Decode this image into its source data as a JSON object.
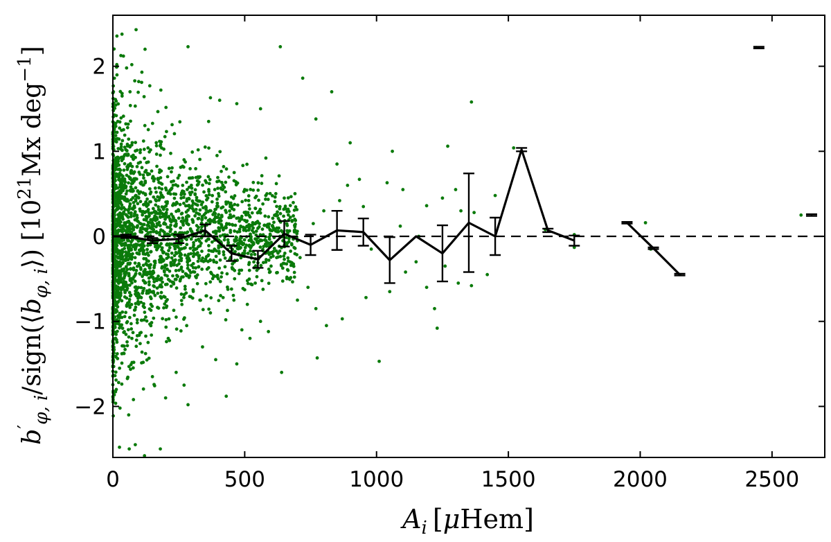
{
  "chart_data": {
    "type": "scatter",
    "xlabel": "A_i [μHem]",
    "ylabel": "b′_φ,i /sign(⟨b_φ,i⟩) [10^21 Mx deg^−1]",
    "xlim": [
      0,
      2700
    ],
    "ylim": [
      -2.6,
      2.6
    ],
    "x_ticks": [
      0,
      500,
      1000,
      1500,
      2000,
      2500
    ],
    "y_ticks": [
      -2,
      -1,
      0,
      1,
      2
    ],
    "x_tick_labels": [
      "0",
      "500",
      "1000",
      "1500",
      "2000",
      "2500"
    ],
    "y_tick_labels": [
      "−2",
      "−1",
      "0",
      "1",
      "2"
    ],
    "grid": false,
    "reference_line": {
      "y": 0,
      "style": "dashed",
      "color": "#000000"
    },
    "scatter": {
      "color": "#0a7a0a",
      "points": [
        [
          15,
          2.02
        ],
        [
          40,
          2.12
        ],
        [
          52,
          1.98
        ],
        [
          88,
          2.43
        ],
        [
          122,
          2.2
        ],
        [
          285,
          2.23
        ],
        [
          110,
          1.93
        ],
        [
          98,
          1.82
        ],
        [
          140,
          1.77
        ],
        [
          182,
          1.72
        ],
        [
          35,
          1.65
        ],
        [
          65,
          1.7
        ],
        [
          370,
          1.63
        ],
        [
          405,
          1.6
        ],
        [
          470,
          1.56
        ],
        [
          560,
          1.5
        ],
        [
          635,
          2.23
        ],
        [
          720,
          1.86
        ],
        [
          770,
          1.38
        ],
        [
          830,
          1.7
        ],
        [
          1360,
          1.58
        ],
        [
          1520,
          1.04
        ],
        [
          900,
          1.1
        ],
        [
          850,
          0.85
        ],
        [
          935,
          0.67
        ],
        [
          890,
          0.6
        ],
        [
          1040,
          0.63
        ],
        [
          1100,
          0.55
        ],
        [
          1060,
          1.0
        ],
        [
          1190,
          0.36
        ],
        [
          1270,
          1.06
        ],
        [
          1250,
          0.45
        ],
        [
          1300,
          0.55
        ],
        [
          1320,
          0.3
        ],
        [
          1370,
          0.28
        ],
        [
          1450,
          0.48
        ],
        [
          1640,
          0.08
        ],
        [
          1750,
          0.02
        ],
        [
          1750,
          -0.13
        ],
        [
          2020,
          0.16
        ],
        [
          2040,
          -0.15
        ],
        [
          2150,
          -0.45
        ],
        [
          2440,
          2.22
        ],
        [
          2610,
          0.25
        ],
        [
          1230,
          -1.08
        ],
        [
          1010,
          -1.47
        ],
        [
          960,
          -0.72
        ],
        [
          870,
          -0.97
        ],
        [
          810,
          -1.05
        ],
        [
          775,
          -1.43
        ],
        [
          770,
          -0.85
        ],
        [
          700,
          -0.75
        ],
        [
          640,
          -1.6
        ],
        [
          590,
          -1.12
        ],
        [
          560,
          -1.0
        ],
        [
          520,
          -1.2
        ],
        [
          470,
          -1.5
        ],
        [
          430,
          -1.88
        ],
        [
          390,
          -1.45
        ],
        [
          340,
          -1.3
        ],
        [
          285,
          -1.98
        ],
        [
          270,
          -1.75
        ],
        [
          240,
          -1.6
        ],
        [
          200,
          -1.9
        ],
        [
          180,
          -2.5
        ],
        [
          150,
          -1.65
        ],
        [
          120,
          -2.58
        ],
        [
          85,
          -2.45
        ],
        [
          62,
          -2.5
        ],
        [
          25,
          -2.48
        ],
        [
          60,
          -2.1
        ],
        [
          78,
          -1.92
        ],
        [
          1220,
          -0.85
        ],
        [
          1190,
          -0.6
        ],
        [
          1260,
          -0.35
        ],
        [
          1310,
          -0.55
        ],
        [
          1360,
          -0.58
        ],
        [
          1420,
          -0.45
        ],
        [
          1050,
          -0.65
        ],
        [
          980,
          -0.15
        ],
        [
          1110,
          -0.42
        ],
        [
          1150,
          -0.3
        ],
        [
          650,
          0.45
        ],
        [
          690,
          0.2
        ],
        [
          620,
          0.62
        ],
        [
          580,
          0.48
        ],
        [
          540,
          0.33
        ],
        [
          500,
          0.55
        ],
        [
          460,
          0.75
        ],
        [
          430,
          0.38
        ],
        [
          420,
          0.82
        ],
        [
          395,
          0.95
        ],
        [
          350,
          1.05
        ],
        [
          330,
          0.7
        ],
        [
          300,
          0.52
        ],
        [
          270,
          0.9
        ],
        [
          250,
          0.3
        ],
        [
          230,
          0.65
        ],
        [
          450,
          -0.62
        ],
        [
          480,
          -0.4
        ],
        [
          510,
          -0.8
        ],
        [
          540,
          -0.55
        ],
        [
          600,
          -0.35
        ],
        [
          660,
          -0.48
        ],
        [
          710,
          -0.25
        ],
        [
          740,
          -0.6
        ],
        [
          310,
          -0.42
        ],
        [
          330,
          -0.75
        ],
        [
          370,
          -0.9
        ],
        [
          400,
          -0.5
        ],
        [
          280,
          -1.05
        ],
        [
          260,
          -0.68
        ],
        [
          240,
          -0.95
        ],
        [
          210,
          -1.2
        ],
        [
          1160,
          0.0
        ],
        [
          1090,
          0.12
        ],
        [
          950,
          0.35
        ],
        [
          860,
          0.42
        ],
        [
          800,
          0.3
        ],
        [
          760,
          0.15
        ]
      ]
    },
    "line": {
      "color": "#000000",
      "segments": [
        [
          [
            0,
            0.0
          ],
          [
            50,
            0.0
          ],
          [
            150,
            -0.05
          ],
          [
            250,
            -0.03
          ],
          [
            350,
            0.07
          ],
          [
            450,
            -0.2
          ],
          [
            550,
            -0.27
          ],
          [
            650,
            0.03
          ],
          [
            750,
            -0.1
          ],
          [
            850,
            0.07
          ],
          [
            950,
            0.05
          ],
          [
            1050,
            -0.28
          ],
          [
            1150,
            0.0
          ],
          [
            1250,
            -0.2
          ],
          [
            1350,
            0.16
          ],
          [
            1450,
            0.0
          ],
          [
            1550,
            1.02
          ],
          [
            1650,
            0.07
          ],
          [
            1750,
            -0.05
          ]
        ],
        [
          [
            1950,
            0.16
          ],
          [
            2050,
            -0.14
          ],
          [
            2150,
            -0.45
          ]
        ]
      ],
      "error_bars": [
        {
          "x": 50,
          "y": 0.0,
          "err": 0.02
        },
        {
          "x": 150,
          "y": -0.05,
          "err": 0.03
        },
        {
          "x": 250,
          "y": -0.03,
          "err": 0.05
        },
        {
          "x": 350,
          "y": 0.07,
          "err": 0.07
        },
        {
          "x": 450,
          "y": -0.2,
          "err": 0.09
        },
        {
          "x": 550,
          "y": -0.27,
          "err": 0.1
        },
        {
          "x": 650,
          "y": 0.03,
          "err": 0.15
        },
        {
          "x": 750,
          "y": -0.1,
          "err": 0.12
        },
        {
          "x": 850,
          "y": 0.07,
          "err": 0.23
        },
        {
          "x": 950,
          "y": 0.05,
          "err": 0.16
        },
        {
          "x": 1050,
          "y": -0.28,
          "err": 0.27
        },
        {
          "x": 1250,
          "y": -0.2,
          "err": 0.33
        },
        {
          "x": 1350,
          "y": 0.16,
          "err": 0.58
        },
        {
          "x": 1450,
          "y": 0.0,
          "err": 0.22
        },
        {
          "x": 1550,
          "y": 1.02,
          "err": 0.02
        },
        {
          "x": 1650,
          "y": 0.07,
          "err": 0.02
        },
        {
          "x": 1750,
          "y": -0.05,
          "err": 0.06
        },
        {
          "x": 1950,
          "y": 0.16,
          "err": 0.01
        },
        {
          "x": 2050,
          "y": -0.14,
          "err": 0.01
        },
        {
          "x": 2150,
          "y": -0.45,
          "err": 0.01
        },
        {
          "x": 2450,
          "y": 2.22,
          "err": 0.01
        },
        {
          "x": 2650,
          "y": 0.25,
          "err": 0.01
        }
      ]
    }
  }
}
